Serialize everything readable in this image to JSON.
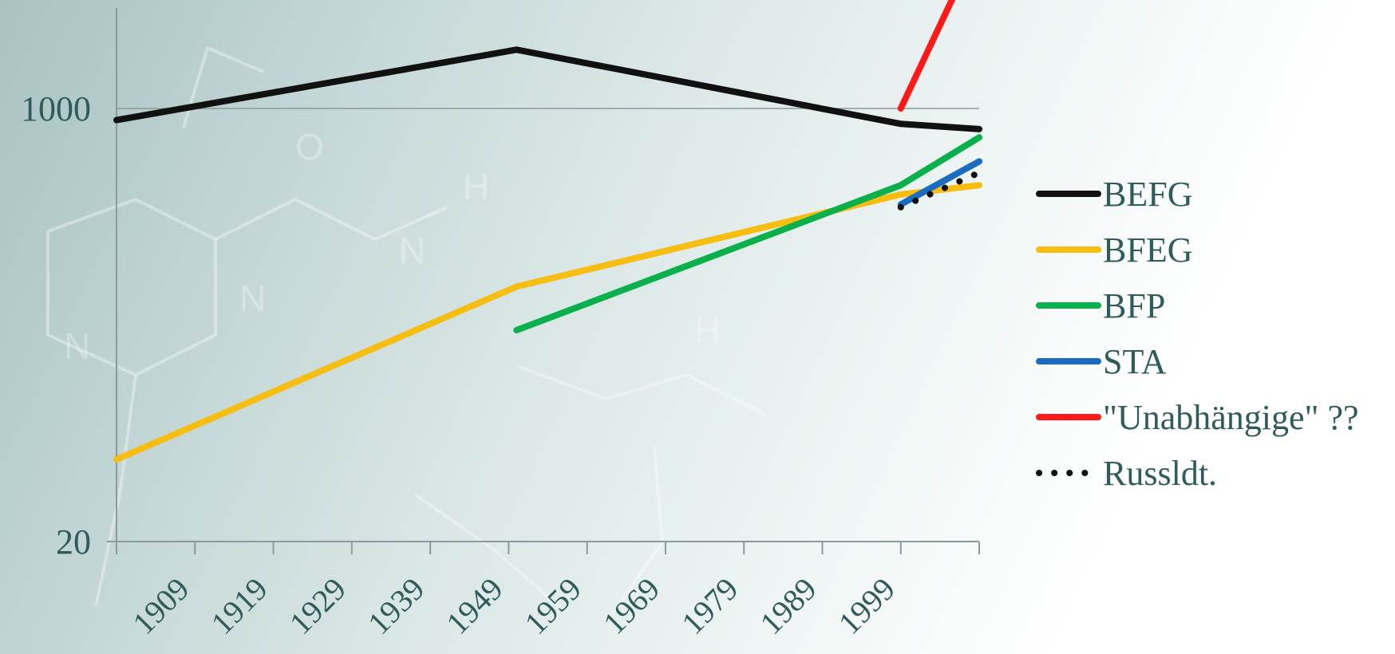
{
  "chart_data": {
    "type": "line",
    "title": "",
    "xlabel": "",
    "ylabel": "",
    "x_range": [
      1899,
      2009
    ],
    "y_scale": "log",
    "y_range": [
      20,
      5000
    ],
    "y_ticks": [
      20,
      1000
    ],
    "x_ticks": [
      1909,
      1919,
      1929,
      1939,
      1949,
      1959,
      1969,
      1979,
      1989,
      1999
    ],
    "grid": "horizontal at 1000",
    "legend_position": "right",
    "series": [
      {
        "name": "BEFG",
        "color": "#111111",
        "style": "solid",
        "x": [
          1899,
          1950,
          1999,
          2009
        ],
        "y": [
          900,
          1700,
          870,
          830
        ]
      },
      {
        "name": "BFEG",
        "color": "#f7bd10",
        "style": "solid",
        "x": [
          1899,
          1950,
          1999,
          2009
        ],
        "y": [
          42,
          200,
          460,
          500
        ]
      },
      {
        "name": "BFP",
        "color": "#0ab04b",
        "style": "solid",
        "x": [
          1950,
          1999,
          2009
        ],
        "y": [
          135,
          500,
          770
        ]
      },
      {
        "name": "STA",
        "color": "#1a6cc0",
        "style": "solid",
        "x": [
          1999,
          2009
        ],
        "y": [
          420,
          620
        ]
      },
      {
        "name": "\"Unabhängige\" ??",
        "color": "#ff1a1a",
        "style": "solid",
        "x": [
          1999,
          2009
        ],
        "y": [
          1000,
          4500
        ]
      },
      {
        "name": "Russldt.",
        "color": "#111111",
        "style": "dotted",
        "x": [
          1999,
          2009
        ],
        "y": [
          410,
          560
        ]
      }
    ]
  }
}
